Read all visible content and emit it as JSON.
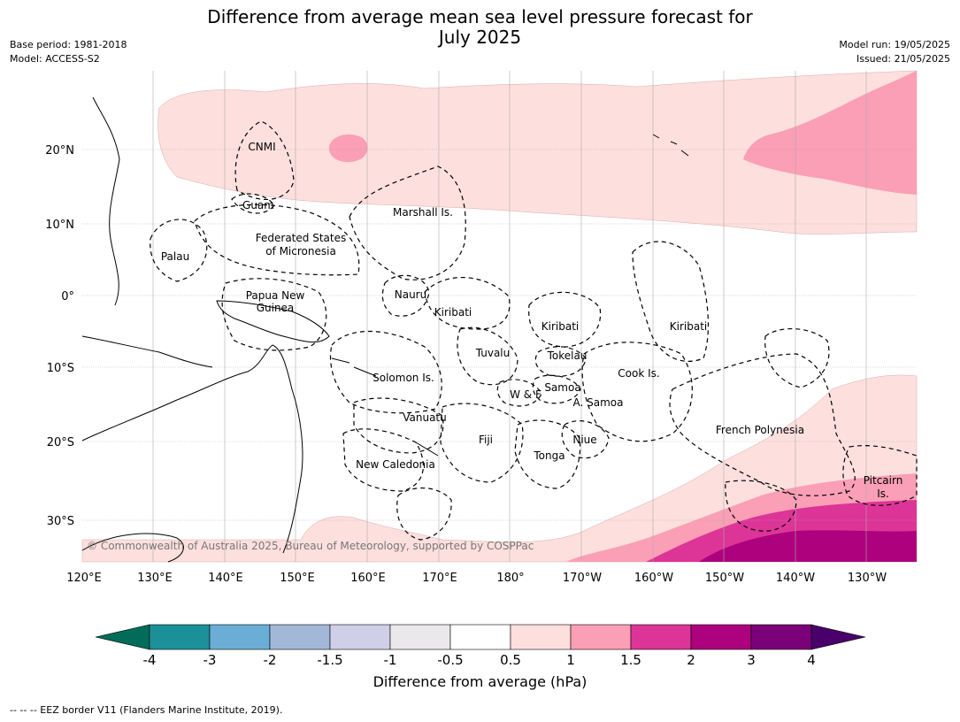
{
  "title_line1": "Difference from average mean sea level pressure forecast for",
  "title_line2": "July 2025",
  "meta": {
    "base_period": "Base period: 1981-2018",
    "model": "Model: ACCESS-S2",
    "model_run": "Model run: 19/05/2025",
    "issued": "Issued: 21/05/2025"
  },
  "lon_ticks": [
    "120°E",
    "130°E",
    "140°E",
    "150°E",
    "160°E",
    "170°E",
    "180°",
    "170°W",
    "160°W",
    "150°W",
    "140°W",
    "130°W"
  ],
  "lat_ticks": [
    "20°N",
    "10°N",
    "0°",
    "10°S",
    "20°S",
    "30°S"
  ],
  "regions": [
    "CNMI",
    "Guam",
    "Marshall Is.",
    "Palau",
    "Federated States",
    "of Micronesia",
    "Papua New",
    "Guinea",
    "Nauru",
    "Kiribati",
    "Kiribati",
    "Kiribati",
    "Tuvalu",
    "Tokelau",
    "Cook Is.",
    "Solomon Is.",
    "Samoa",
    "W & F",
    "A. Samoa",
    "Vanuatu",
    "Fiji",
    "Niue",
    "Tonga",
    "French Polynesia",
    "New Caledonia",
    "Pitcairn",
    "Is."
  ],
  "copyright": "© Commonwealth of Australia 2025, Bureau of Meteorology, supported by COSPPac",
  "colorbar": {
    "ticks": [
      "-4",
      "-3",
      "-2",
      "-1.5",
      "-1",
      "-0.5",
      "0.5",
      "1",
      "1.5",
      "2",
      "3",
      "4"
    ],
    "colors": [
      "#1b9099",
      "#6aaed6",
      "#a3b8d9",
      "#cfcfe8",
      "#ebe8ec",
      "#ffffff",
      "#fde0dd",
      "#fa9fb5",
      "#dd3497",
      "#ae017e",
      "#7a0177"
    ],
    "under_color": "#016c59",
    "over_color": "#49006a",
    "label": "Difference from average (hPa)"
  },
  "footnote": "--  --  -- EEZ border V11 (Flanders Marine Institute, 2019)."
}
